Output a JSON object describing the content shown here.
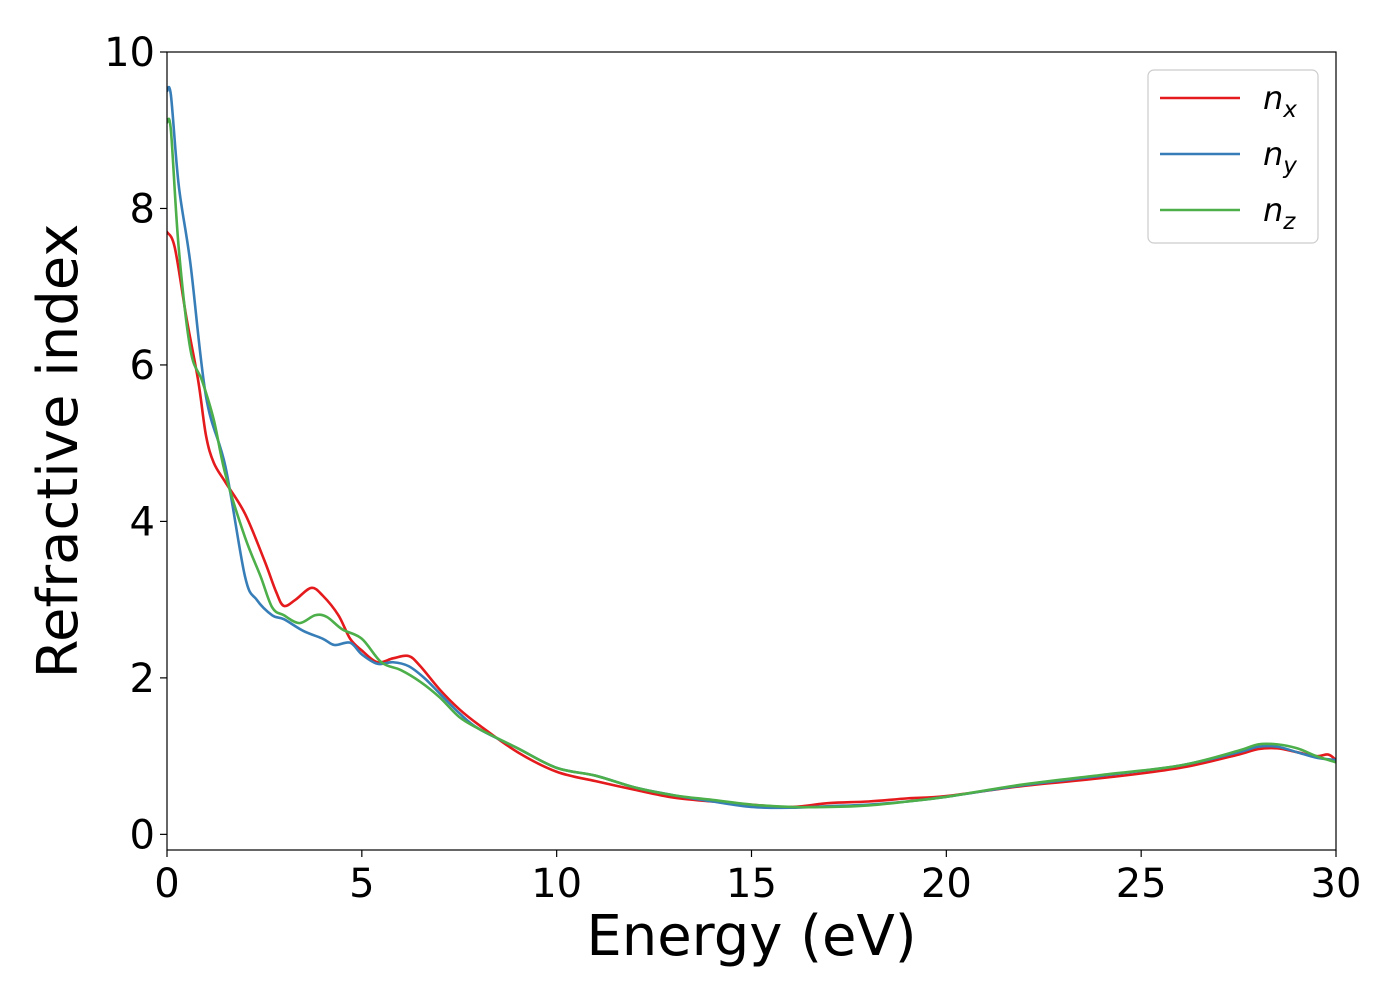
{
  "chart_data": {
    "type": "line",
    "title": "",
    "xlabel": "Energy (eV)",
    "ylabel": "Refractive index",
    "xlim": [
      0,
      30
    ],
    "ylim": [
      -0.2,
      10
    ],
    "xticks": [
      0,
      5,
      10,
      15,
      20,
      25,
      30
    ],
    "yticks": [
      0,
      2,
      4,
      6,
      8,
      10
    ],
    "grid": false,
    "legend_position": "top-right",
    "series": [
      {
        "name": "n",
        "subscript": "x",
        "color": "#e41a1c",
        "x": [
          0,
          0.2,
          0.5,
          0.8,
          1.0,
          1.2,
          1.5,
          2.0,
          2.5,
          2.8,
          3.0,
          3.3,
          3.7,
          4.0,
          4.4,
          4.7,
          5.0,
          5.4,
          5.8,
          6.2,
          6.5,
          7.0,
          7.5,
          8.0,
          9.0,
          10.0,
          11.0,
          12.0,
          13.0,
          14.0,
          15.0,
          16.0,
          17.0,
          18.0,
          19.0,
          20.0,
          22.0,
          24.0,
          26.0,
          27.5,
          28.0,
          28.5,
          29.0,
          29.5,
          29.8,
          30.0
        ],
        "y": [
          7.7,
          7.5,
          6.6,
          5.8,
          5.1,
          4.75,
          4.5,
          4.1,
          3.5,
          3.1,
          2.92,
          3.0,
          3.15,
          3.05,
          2.8,
          2.5,
          2.35,
          2.2,
          2.25,
          2.28,
          2.15,
          1.85,
          1.6,
          1.4,
          1.05,
          0.8,
          0.68,
          0.57,
          0.47,
          0.42,
          0.38,
          0.35,
          0.4,
          0.42,
          0.46,
          0.49,
          0.62,
          0.72,
          0.85,
          1.02,
          1.09,
          1.1,
          1.05,
          1.0,
          1.02,
          0.95
        ]
      },
      {
        "name": "n",
        "subscript": "y",
        "color": "#377eb8",
        "x": [
          0,
          0.1,
          0.3,
          0.6,
          1.0,
          1.5,
          2.0,
          2.3,
          2.7,
          3.0,
          3.5,
          4.0,
          4.3,
          4.7,
          5.0,
          5.4,
          5.8,
          6.2,
          6.6,
          7.0,
          7.5,
          8.0,
          9.0,
          10.0,
          11.0,
          12.0,
          13.0,
          14.0,
          15.0,
          16.0,
          17.0,
          18.0,
          19.0,
          20.0,
          22.0,
          24.0,
          26.0,
          27.5,
          28.0,
          28.5,
          29.0,
          29.5,
          30.0
        ],
        "y": [
          9.5,
          9.45,
          8.3,
          7.3,
          5.6,
          4.7,
          3.3,
          3.0,
          2.8,
          2.75,
          2.6,
          2.5,
          2.42,
          2.45,
          2.3,
          2.18,
          2.2,
          2.15,
          2.0,
          1.8,
          1.55,
          1.35,
          1.1,
          0.85,
          0.75,
          0.6,
          0.5,
          0.42,
          0.35,
          0.34,
          0.36,
          0.38,
          0.42,
          0.48,
          0.63,
          0.75,
          0.88,
          1.05,
          1.12,
          1.12,
          1.05,
          0.98,
          0.95
        ]
      },
      {
        "name": "n",
        "subscript": "z",
        "color": "#4daf4a",
        "x": [
          0,
          0.1,
          0.3,
          0.6,
          0.9,
          1.2,
          1.5,
          2.0,
          2.4,
          2.7,
          3.0,
          3.4,
          3.8,
          4.1,
          4.5,
          5.0,
          5.5,
          6.0,
          6.5,
          7.0,
          7.5,
          8.0,
          9.0,
          10.0,
          11.0,
          12.0,
          13.0,
          14.0,
          15.0,
          16.0,
          17.0,
          18.0,
          19.0,
          20.0,
          22.0,
          24.0,
          26.0,
          27.5,
          28.0,
          28.5,
          29.0,
          29.5,
          30.0
        ],
        "y": [
          9.1,
          9.0,
          7.5,
          6.2,
          5.8,
          5.3,
          4.6,
          3.8,
          3.3,
          2.9,
          2.8,
          2.7,
          2.8,
          2.78,
          2.62,
          2.5,
          2.2,
          2.1,
          1.95,
          1.75,
          1.5,
          1.35,
          1.1,
          0.85,
          0.75,
          0.6,
          0.5,
          0.44,
          0.38,
          0.35,
          0.35,
          0.37,
          0.42,
          0.48,
          0.64,
          0.76,
          0.88,
          1.07,
          1.15,
          1.15,
          1.1,
          1.0,
          0.92
        ]
      }
    ]
  }
}
